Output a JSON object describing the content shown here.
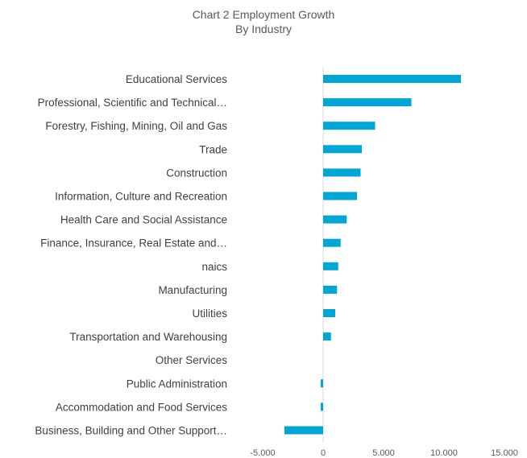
{
  "chart_data": {
    "type": "bar",
    "orientation": "horizontal",
    "title": [
      "Chart 2 Employment Growth",
      "By Industry"
    ],
    "categories": [
      "Educational Services",
      "Professional, Scientific and Technical…",
      "Forestry, Fishing, Mining, Oil and Gas",
      "Trade",
      "Construction",
      "Information, Culture and Recreation",
      "Health Care and Social Assistance",
      "Finance, Insurance, Real Estate and…",
      "naics",
      "Manufacturing",
      "Utilities",
      "Transportation and Warehousing",
      "Other Services",
      "Public Administration",
      "Accommodation and Food Services",
      "Business, Building and Other Support…"
    ],
    "values": [
      11400,
      7300,
      4300,
      3200,
      3100,
      2800,
      1950,
      1450,
      1250,
      1150,
      1000,
      650,
      0,
      -200,
      -200,
      -3200
    ],
    "xlim": [
      -5000,
      15000
    ],
    "xticks": [
      -5000,
      0,
      5000,
      10000,
      15000
    ],
    "xtick_labels": [
      "-5.000",
      "0",
      "5.000",
      "10.000",
      "15.000"
    ],
    "bar_color": "#00a6d6",
    "axis_color": "#d9d9d9",
    "grid": false,
    "legend": "none"
  }
}
